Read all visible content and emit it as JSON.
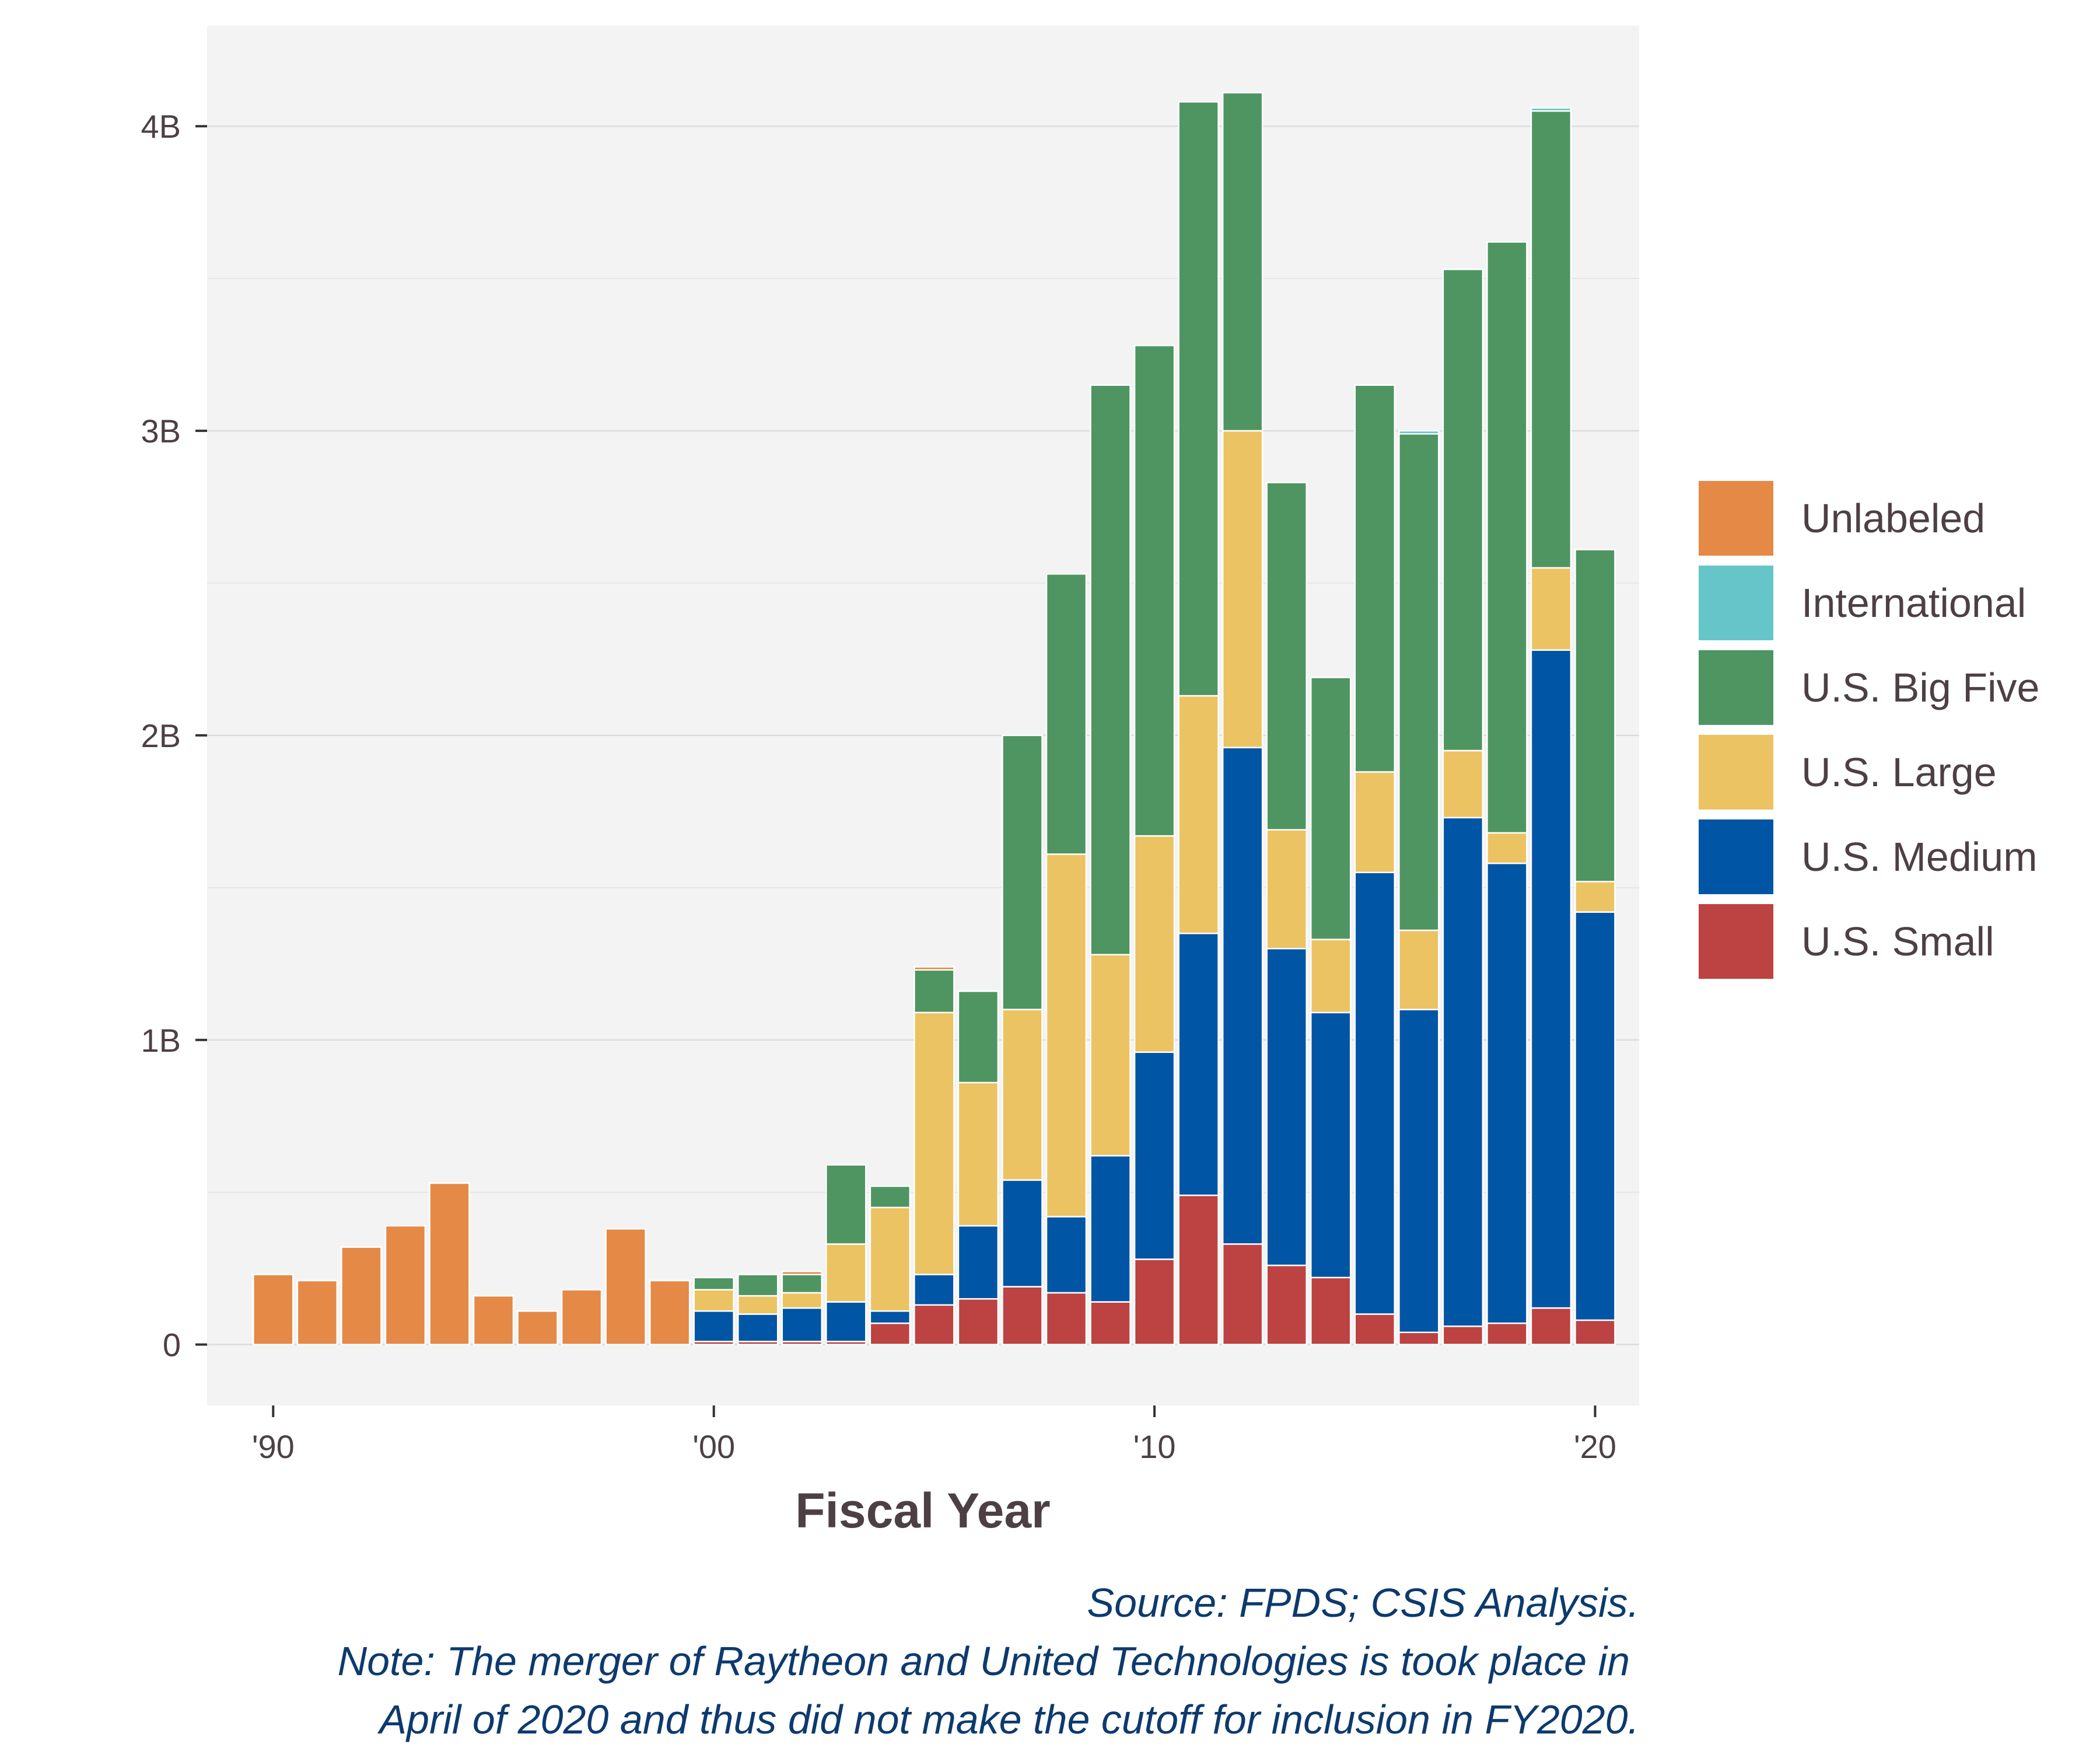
{
  "chart_data": {
    "type": "bar",
    "stacked": true,
    "xlabel": "Fiscal Year",
    "ylabel": "",
    "ylim": [
      -0.2,
      4.33
    ],
    "xlim": [
      1988.5,
      2021.0
    ],
    "y_ticks": [
      {
        "value": 0,
        "label": "0"
      },
      {
        "value": 1,
        "label": "1B"
      },
      {
        "value": 2,
        "label": "2B"
      },
      {
        "value": 3,
        "label": "3B"
      },
      {
        "value": 4,
        "label": "4B"
      }
    ],
    "y_minor_gridlines": [
      0.5,
      1.5,
      2.5,
      3.5
    ],
    "x_ticks": [
      {
        "value": 1990,
        "label": "'90"
      },
      {
        "value": 2000,
        "label": "'00"
      },
      {
        "value": 2010,
        "label": "'10"
      },
      {
        "value": 2020,
        "label": "'20"
      }
    ],
    "grid": true,
    "legend_position": "right",
    "background": "#f3f3f3",
    "x": [
      1990,
      1991,
      1992,
      1993,
      1994,
      1995,
      1996,
      1997,
      1998,
      1999,
      2000,
      2001,
      2002,
      2003,
      2004,
      2005,
      2006,
      2007,
      2008,
      2009,
      2010,
      2011,
      2012,
      2013,
      2014,
      2015,
      2016,
      2017,
      2018,
      2019,
      2020
    ],
    "series": [
      {
        "name": "U.S. Small",
        "color": "#bd4242",
        "values": [
          0,
          0,
          0,
          0,
          0,
          0,
          0,
          0,
          0,
          0,
          0.01,
          0.01,
          0.01,
          0.01,
          0.07,
          0.13,
          0.15,
          0.19,
          0.17,
          0.14,
          0.28,
          0.49,
          0.33,
          0.26,
          0.22,
          0.1,
          0.04,
          0.06,
          0.07,
          0.12,
          0.08
        ]
      },
      {
        "name": "U.S. Medium",
        "color": "#0055a4",
        "values": [
          0,
          0,
          0,
          0,
          0,
          0,
          0,
          0,
          0,
          0,
          0.1,
          0.09,
          0.11,
          0.13,
          0.04,
          0.1,
          0.24,
          0.35,
          0.25,
          0.48,
          0.68,
          0.86,
          1.63,
          1.04,
          0.87,
          1.45,
          1.06,
          1.67,
          1.51,
          2.16,
          1.34
        ]
      },
      {
        "name": "U.S. Large",
        "color": "#ecc363",
        "values": [
          0,
          0,
          0,
          0,
          0,
          0,
          0,
          0,
          0,
          0,
          0.07,
          0.06,
          0.05,
          0.19,
          0.34,
          0.86,
          0.47,
          0.56,
          1.19,
          0.66,
          0.71,
          0.78,
          1.04,
          0.39,
          0.24,
          0.33,
          0.26,
          0.22,
          0.1,
          0.27,
          0.1
        ]
      },
      {
        "name": "U.S. Big Five",
        "color": "#4e9562",
        "values": [
          0,
          0,
          0,
          0,
          0,
          0,
          0,
          0,
          0,
          0,
          0.04,
          0.07,
          0.06,
          0.26,
          0.07,
          0.14,
          0.3,
          0.9,
          0.92,
          1.87,
          1.61,
          1.95,
          1.11,
          1.14,
          0.86,
          1.27,
          1.63,
          1.58,
          1.94,
          1.5,
          1.09
        ]
      },
      {
        "name": "International",
        "color": "#66c5c9",
        "values": [
          0,
          0,
          0,
          0,
          0,
          0,
          0,
          0,
          0,
          0,
          0,
          0,
          0,
          0,
          0,
          0,
          0,
          0,
          0,
          0,
          0,
          0,
          0,
          0,
          0,
          0,
          0.01,
          0,
          0,
          0.01,
          0
        ]
      },
      {
        "name": "Unlabeled",
        "color": "#e58946",
        "values": [
          0.23,
          0.21,
          0.32,
          0.39,
          0.53,
          0.16,
          0.11,
          0.18,
          0.38,
          0.21,
          0,
          0,
          0.01,
          0,
          0,
          0.01,
          0,
          0,
          0,
          0,
          0,
          0,
          0,
          0,
          0,
          0,
          0,
          0,
          0,
          0,
          0
        ]
      }
    ],
    "legend_order": [
      "Unlabeled",
      "International",
      "U.S. Big Five",
      "U.S. Large",
      "U.S. Medium",
      "U.S. Small"
    ]
  },
  "caption": {
    "line1": "Source: FPDS; CSIS Analysis.",
    "line2": "Note: The merger of Raytheon and United Technologies is took place in",
    "line3": "April of 2020 and thus did not make the cutoff for inclusion in FY2020."
  }
}
